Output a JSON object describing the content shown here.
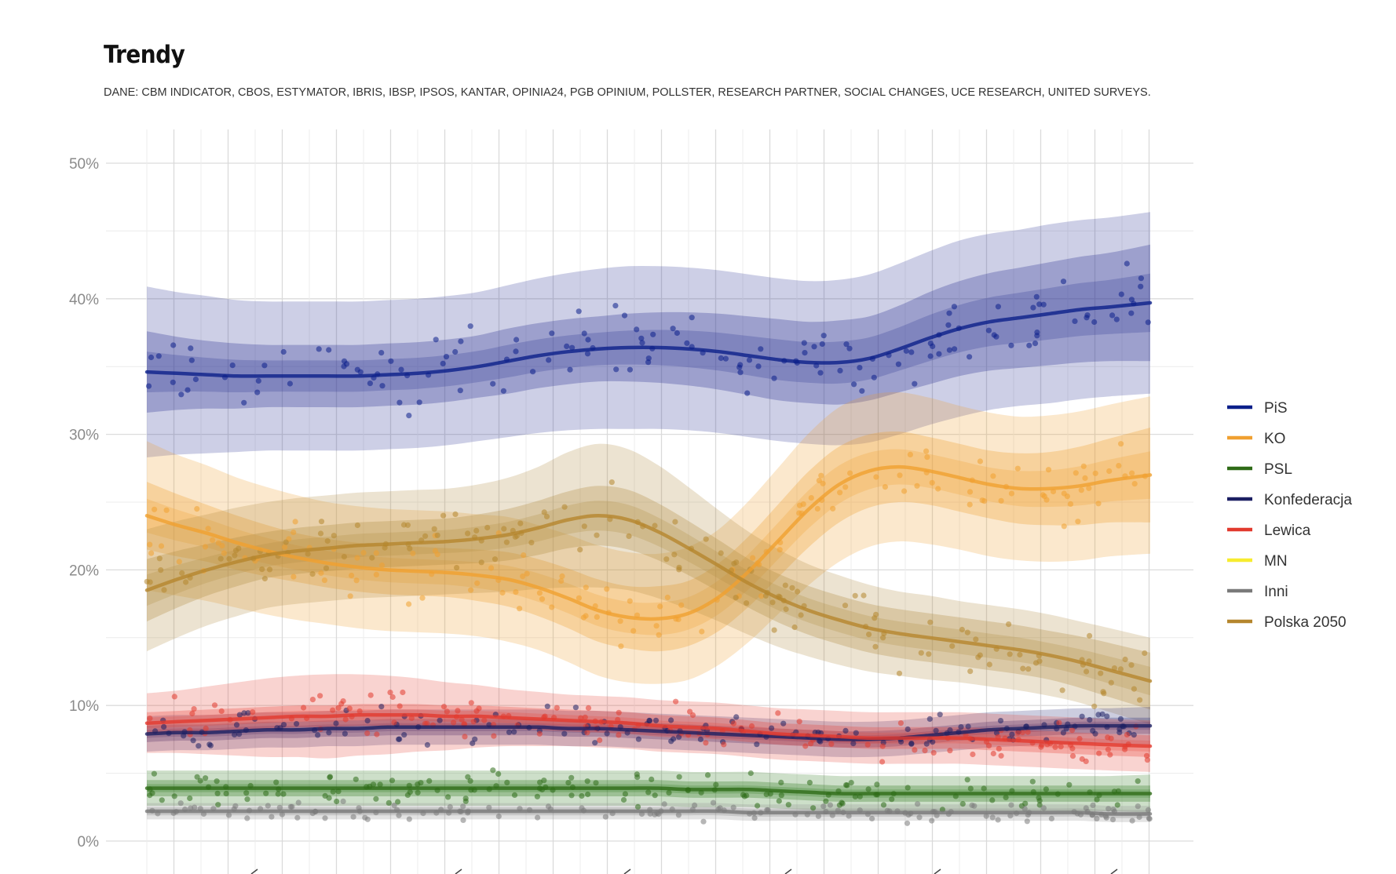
{
  "chart_data": {
    "type": "line",
    "title": "Trendy",
    "subtitle": "DANE: CBM INDICATOR, CBOS, ESTYMATOR, IBRIS, IBSP, IPSOS, KANTAR, OPINIA24, PGB OPINIUM, POLLSTER, RESEARCH PARTNER, SOCIAL CHANGES, UCE RESEARCH, UNITED SURVEYS.",
    "xlabel": "",
    "ylabel": "",
    "y_ticks": [
      "0%",
      "10%",
      "20%",
      "30%",
      "40%",
      "50%"
    ],
    "ylim": [
      0,
      50
    ],
    "x_ticks_labeled": false,
    "grid": true,
    "legend_position": "right",
    "point_x": [
      0.0,
      0.03,
      0.06,
      0.09,
      0.12,
      0.15,
      0.18,
      0.21,
      0.24,
      0.27,
      0.3,
      0.33,
      0.36,
      0.39,
      0.42,
      0.45,
      0.48,
      0.51,
      0.54,
      0.57,
      0.6,
      0.63,
      0.66,
      0.69,
      0.72,
      0.75,
      0.78,
      0.81,
      0.84,
      0.87,
      0.9,
      0.93,
      0.96,
      1.0
    ],
    "series": [
      {
        "name": "PiS",
        "color": "#0b1f8a",
        "band_color": "#2d3595",
        "scatter_spread": 3.2,
        "values": [
          34.6,
          34.5,
          34.4,
          34.3,
          34.3,
          34.3,
          34.3,
          34.3,
          34.4,
          34.5,
          34.7,
          35.0,
          35.4,
          35.8,
          36.1,
          36.3,
          36.4,
          36.4,
          36.3,
          36.1,
          35.8,
          35.5,
          35.3,
          35.3,
          35.6,
          36.3,
          37.1,
          37.8,
          38.3,
          38.6,
          38.9,
          39.2,
          39.4,
          39.7
        ],
        "band_width": [
          3.0,
          2.7,
          2.5,
          2.4,
          2.3,
          2.3,
          2.3,
          2.3,
          2.3,
          2.3,
          2.3,
          2.3,
          2.4,
          2.4,
          2.4,
          2.4,
          2.5,
          2.6,
          2.7,
          2.8,
          2.9,
          3.0,
          3.0,
          3.1,
          3.1,
          3.2,
          3.4,
          3.5,
          3.6,
          3.7,
          3.8,
          3.9,
          4.0,
          4.3
        ],
        "outer_band_width": [
          6.3,
          6.0,
          5.8,
          5.6,
          5.5,
          5.5,
          5.5,
          5.5,
          5.5,
          5.5,
          5.5,
          5.5,
          5.6,
          5.7,
          5.8,
          5.9,
          6.0,
          6.0,
          6.0,
          6.0,
          6.0,
          6.0,
          6.0,
          6.1,
          6.2,
          6.3,
          6.4,
          6.5,
          6.5,
          6.5,
          6.6,
          6.6,
          6.6,
          6.7
        ]
      },
      {
        "name": "KO",
        "color": "#f0a030",
        "band_color": "#f0a030",
        "scatter_spread": 3.0,
        "values": [
          24.0,
          23.3,
          22.7,
          22.0,
          21.4,
          20.9,
          20.5,
          20.2,
          20.0,
          19.9,
          19.8,
          19.6,
          19.3,
          18.7,
          17.9,
          17.0,
          16.5,
          16.4,
          16.8,
          18.0,
          19.9,
          22.2,
          24.5,
          26.3,
          27.3,
          27.6,
          27.3,
          26.8,
          26.3,
          26.0,
          26.0,
          26.2,
          26.6,
          27.0
        ],
        "band_width": [
          2.5,
          2.3,
          2.1,
          2.0,
          1.9,
          1.8,
          1.8,
          1.8,
          1.8,
          1.8,
          1.8,
          1.9,
          2.0,
          2.1,
          2.2,
          2.3,
          2.3,
          2.4,
          2.4,
          2.5,
          2.6,
          2.7,
          2.8,
          2.8,
          2.7,
          2.6,
          2.5,
          2.5,
          2.5,
          2.6,
          2.7,
          2.9,
          3.1,
          3.5
        ],
        "outer_band_width": [
          5.5,
          5.2,
          5.0,
          4.8,
          4.7,
          4.6,
          4.5,
          4.5,
          4.5,
          4.5,
          4.5,
          4.5,
          4.6,
          4.6,
          4.7,
          4.8,
          4.8,
          4.8,
          4.9,
          5.0,
          5.2,
          5.4,
          5.6,
          5.7,
          5.6,
          5.5,
          5.4,
          5.3,
          5.3,
          5.3,
          5.4,
          5.5,
          5.6,
          5.8
        ]
      },
      {
        "name": "PSL",
        "color": "#2e6b17",
        "band_color": "#2e7a1f",
        "scatter_spread": 1.4,
        "values": [
          3.9,
          3.9,
          3.9,
          3.9,
          3.9,
          3.9,
          3.9,
          3.9,
          3.9,
          3.9,
          3.9,
          3.9,
          3.9,
          3.9,
          3.9,
          3.9,
          3.9,
          3.9,
          3.8,
          3.8,
          3.8,
          3.7,
          3.6,
          3.5,
          3.5,
          3.5,
          3.5,
          3.5,
          3.5,
          3.5,
          3.5,
          3.5,
          3.5,
          3.5
        ],
        "band_width": [
          0.6,
          0.6,
          0.6,
          0.6,
          0.6,
          0.6,
          0.6,
          0.6,
          0.6,
          0.6,
          0.6,
          0.6,
          0.6,
          0.6,
          0.6,
          0.6,
          0.6,
          0.6,
          0.6,
          0.6,
          0.6,
          0.6,
          0.6,
          0.6,
          0.6,
          0.6,
          0.6,
          0.6,
          0.6,
          0.6,
          0.6,
          0.6,
          0.6,
          0.6
        ],
        "outer_band_width": [
          1.3,
          1.3,
          1.3,
          1.3,
          1.3,
          1.3,
          1.3,
          1.3,
          1.3,
          1.3,
          1.3,
          1.3,
          1.3,
          1.3,
          1.3,
          1.3,
          1.3,
          1.3,
          1.3,
          1.3,
          1.3,
          1.3,
          1.3,
          1.3,
          1.3,
          1.3,
          1.3,
          1.3,
          1.3,
          1.3,
          1.3,
          1.3,
          1.3,
          1.4
        ]
      },
      {
        "name": "Konfederacja",
        "color": "#1b1f62",
        "band_color": "#2a2d78",
        "scatter_spread": 1.5,
        "values": [
          7.9,
          8.0,
          8.0,
          8.1,
          8.2,
          8.2,
          8.3,
          8.3,
          8.4,
          8.4,
          8.4,
          8.4,
          8.4,
          8.4,
          8.3,
          8.3,
          8.2,
          8.1,
          8.0,
          7.9,
          7.8,
          7.7,
          7.6,
          7.5,
          7.5,
          7.6,
          7.8,
          8.0,
          8.2,
          8.3,
          8.4,
          8.5,
          8.5,
          8.5
        ],
        "band_width": [
          0.6,
          0.6,
          0.6,
          0.6,
          0.6,
          0.6,
          0.6,
          0.6,
          0.6,
          0.6,
          0.6,
          0.6,
          0.6,
          0.6,
          0.6,
          0.6,
          0.6,
          0.6,
          0.6,
          0.6,
          0.6,
          0.6,
          0.6,
          0.6,
          0.6,
          0.6,
          0.6,
          0.6,
          0.6,
          0.6,
          0.6,
          0.6,
          0.6,
          0.6
        ],
        "outer_band_width": [
          1.3,
          1.3,
          1.3,
          1.3,
          1.3,
          1.3,
          1.3,
          1.3,
          1.3,
          1.3,
          1.3,
          1.3,
          1.3,
          1.3,
          1.3,
          1.3,
          1.3,
          1.3,
          1.3,
          1.3,
          1.3,
          1.3,
          1.3,
          1.3,
          1.3,
          1.3,
          1.3,
          1.3,
          1.3,
          1.3,
          1.3,
          1.3,
          1.3,
          1.4
        ]
      },
      {
        "name": "Lewica",
        "color": "#e23a2e",
        "band_color": "#e8473a",
        "scatter_spread": 1.8,
        "values": [
          8.7,
          8.8,
          8.9,
          9.0,
          9.1,
          9.2,
          9.2,
          9.3,
          9.3,
          9.3,
          9.2,
          9.2,
          9.1,
          9.0,
          8.9,
          8.8,
          8.7,
          8.5,
          8.4,
          8.3,
          8.1,
          7.9,
          7.8,
          7.7,
          7.6,
          7.6,
          7.6,
          7.6,
          7.5,
          7.4,
          7.3,
          7.2,
          7.1,
          7.0
        ],
        "band_width": [
          0.8,
          0.8,
          0.8,
          0.8,
          0.8,
          0.8,
          0.8,
          0.8,
          0.8,
          0.8,
          0.8,
          0.8,
          0.8,
          0.8,
          0.8,
          0.8,
          0.8,
          0.8,
          0.8,
          0.8,
          0.8,
          0.8,
          0.8,
          0.8,
          0.8,
          0.8,
          0.8,
          0.8,
          0.8,
          0.8,
          0.8,
          0.8,
          0.8,
          0.8
        ],
        "outer_band_width": [
          2.2,
          2.3,
          2.5,
          2.7,
          2.9,
          3.0,
          3.1,
          3.0,
          2.9,
          2.7,
          2.5,
          2.3,
          2.1,
          2.0,
          1.9,
          1.9,
          1.9,
          1.9,
          1.9,
          1.9,
          1.9,
          1.9,
          1.9,
          1.9,
          1.9,
          1.9,
          1.9,
          1.9,
          1.9,
          1.9,
          1.9,
          1.9,
          1.9,
          1.9
        ]
      },
      {
        "name": "MN",
        "color": "#f7ec2f",
        "band_color": "#f7ec2f",
        "scatter_spread": 0.0,
        "values": [],
        "band_width": [],
        "outer_band_width": []
      },
      {
        "name": "Inni",
        "color": "#7a7a7a",
        "band_color": "#8a8a8a",
        "scatter_spread": 0.9,
        "values": [
          2.2,
          2.2,
          2.2,
          2.2,
          2.2,
          2.2,
          2.2,
          2.2,
          2.2,
          2.2,
          2.2,
          2.2,
          2.2,
          2.2,
          2.2,
          2.2,
          2.2,
          2.2,
          2.2,
          2.2,
          2.1,
          2.1,
          2.1,
          2.1,
          2.1,
          2.1,
          2.1,
          2.1,
          2.1,
          2.1,
          2.1,
          2.1,
          2.0,
          2.0
        ],
        "band_width": [
          0.3,
          0.3,
          0.3,
          0.3,
          0.3,
          0.3,
          0.3,
          0.3,
          0.3,
          0.3,
          0.3,
          0.3,
          0.3,
          0.3,
          0.3,
          0.3,
          0.3,
          0.3,
          0.3,
          0.3,
          0.3,
          0.3,
          0.3,
          0.3,
          0.3,
          0.3,
          0.3,
          0.3,
          0.3,
          0.3,
          0.3,
          0.3,
          0.3,
          0.3
        ],
        "outer_band_width": [
          0.6,
          0.6,
          0.6,
          0.6,
          0.6,
          0.6,
          0.6,
          0.6,
          0.6,
          0.6,
          0.6,
          0.6,
          0.6,
          0.6,
          0.6,
          0.6,
          0.6,
          0.6,
          0.6,
          0.6,
          0.6,
          0.6,
          0.6,
          0.6,
          0.6,
          0.6,
          0.6,
          0.6,
          0.6,
          0.6,
          0.6,
          0.6,
          0.6,
          0.6
        ]
      },
      {
        "name": "Polska 2050",
        "color": "#b5862d",
        "band_color": "#b08a3e",
        "scatter_spread": 2.8,
        "values": [
          18.5,
          19.3,
          20.0,
          20.6,
          21.1,
          21.4,
          21.6,
          21.8,
          21.9,
          22.0,
          22.1,
          22.3,
          22.6,
          23.1,
          23.7,
          24.0,
          23.7,
          22.8,
          21.6,
          20.3,
          19.0,
          17.9,
          17.0,
          16.3,
          15.7,
          15.3,
          15.0,
          14.7,
          14.4,
          14.1,
          13.7,
          13.2,
          12.6,
          11.8
        ],
        "band_width": [
          2.3,
          2.1,
          1.9,
          1.8,
          1.7,
          1.7,
          1.7,
          1.7,
          1.7,
          1.7,
          1.7,
          1.8,
          1.9,
          2.0,
          2.1,
          2.2,
          2.2,
          2.1,
          2.0,
          1.9,
          1.8,
          1.8,
          1.8,
          1.8,
          1.8,
          1.8,
          1.8,
          1.8,
          1.8,
          1.8,
          1.8,
          1.9,
          2.0,
          2.1
        ],
        "outer_band_width": [
          4.5,
          4.3,
          4.1,
          4.0,
          3.9,
          3.9,
          3.9,
          3.9,
          3.9,
          3.9,
          3.9,
          4.0,
          4.2,
          4.5,
          5.0,
          5.3,
          5.2,
          4.9,
          4.5,
          4.1,
          3.8,
          3.6,
          3.4,
          3.3,
          3.2,
          3.1,
          3.1,
          3.0,
          3.0,
          3.0,
          3.0,
          3.0,
          3.1,
          3.2
        ]
      }
    ]
  }
}
